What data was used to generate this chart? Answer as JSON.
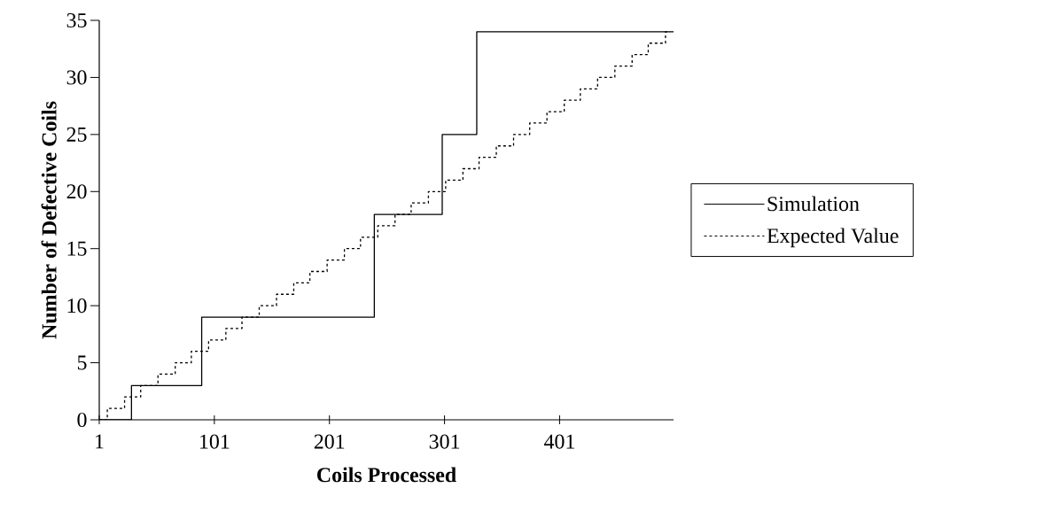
{
  "chart_data": {
    "type": "step",
    "xlabel": "Coils Processed",
    "ylabel": "Number of Defective Coils",
    "xlim": [
      1,
      500
    ],
    "ylim": [
      0,
      35
    ],
    "xticks": [
      1,
      101,
      201,
      301,
      401
    ],
    "yticks": [
      0,
      5,
      10,
      15,
      20,
      25,
      30,
      35
    ],
    "grid": false,
    "legend": "right",
    "series": [
      {
        "name": "Simulation",
        "color": "#000000",
        "line_style": "solid",
        "x": [
          1,
          29,
          90,
          240,
          299,
          329,
          500
        ],
        "values": [
          0,
          3,
          9,
          18,
          25,
          34,
          34
        ]
      },
      {
        "name": "Expected Value",
        "color": "#000000",
        "line_style": "dashed",
        "x": [
          1,
          8,
          23,
          37,
          52,
          67,
          81,
          96,
          111,
          125,
          140,
          155,
          170,
          184,
          199,
          214,
          228,
          243,
          258,
          272,
          287,
          302,
          317,
          331,
          346,
          361,
          375,
          390,
          405,
          419,
          434,
          449,
          464,
          478,
          493,
          497
        ],
        "values": [
          0,
          1,
          2,
          3,
          4,
          5,
          6,
          7,
          8,
          9,
          10,
          11,
          12,
          13,
          14,
          15,
          16,
          17,
          18,
          19,
          20,
          21,
          22,
          23,
          24,
          25,
          26,
          27,
          28,
          29,
          30,
          31,
          32,
          33,
          34,
          34
        ]
      }
    ]
  }
}
